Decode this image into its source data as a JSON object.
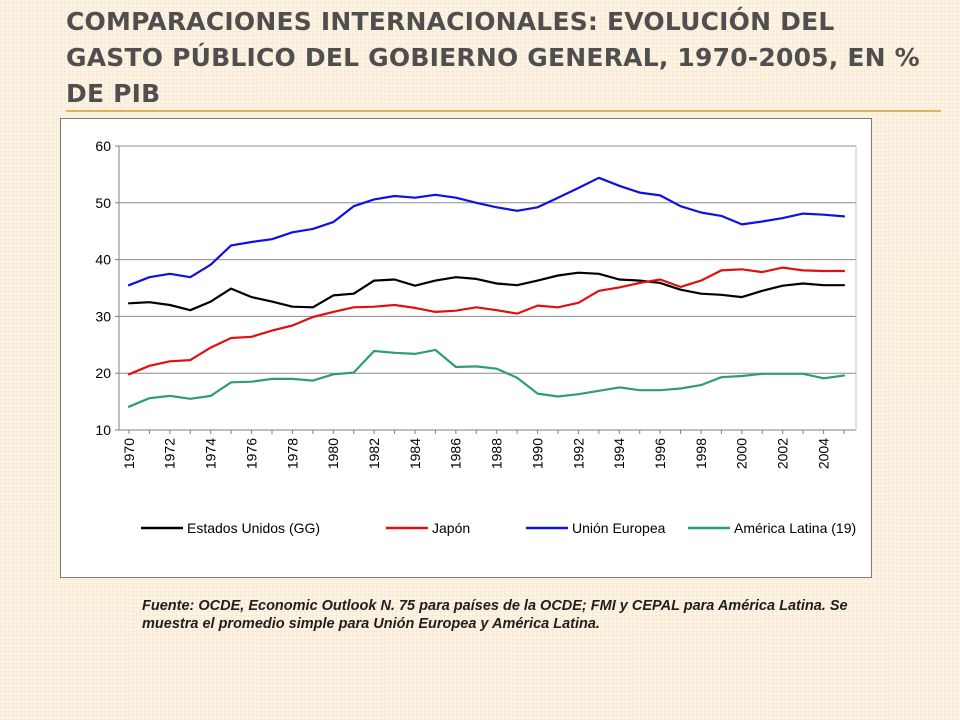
{
  "slide": {
    "title": "COMPARACIONES  INTERNACIONALES: EVOLUCIÓN DEL GASTO  PÚBLICO DEL GOBIERNO GENERAL, 1970-2005, EN % DE PIB",
    "source": "Fuente: OCDE, Economic Outlook N. 75 para países de la OCDE; FMI y CEPAL para América Latina. Se muestra el promedio simple para Unión Europea y América Latina."
  },
  "chart_data": {
    "type": "line",
    "title": "",
    "xlabel": "",
    "ylabel": "",
    "ylim": [
      10,
      60
    ],
    "yticks": [
      10,
      20,
      30,
      40,
      50,
      60
    ],
    "grid": true,
    "legend_position": "bottom",
    "x": [
      1970,
      1971,
      1972,
      1973,
      1974,
      1975,
      1976,
      1977,
      1978,
      1979,
      1980,
      1981,
      1982,
      1983,
      1984,
      1985,
      1986,
      1987,
      1988,
      1989,
      1990,
      1991,
      1992,
      1993,
      1994,
      1995,
      1996,
      1997,
      1998,
      1999,
      2000,
      2001,
      2002,
      2003,
      2004,
      2005
    ],
    "xtick_labels": [
      "1970",
      "1972",
      "1974",
      "1976",
      "1978",
      "1980",
      "1982",
      "1984",
      "1986",
      "1988",
      "1990",
      "1992",
      "1994",
      "1996",
      "1998",
      "2000",
      "2002",
      "2004"
    ],
    "series": [
      {
        "name": "Estados Unidos (GG)",
        "color": "#000000",
        "values": [
          32.3,
          32.5,
          32.0,
          31.1,
          32.6,
          34.9,
          33.4,
          32.6,
          31.7,
          31.6,
          33.7,
          34.0,
          36.3,
          36.5,
          35.4,
          36.3,
          36.9,
          36.6,
          35.8,
          35.5,
          36.3,
          37.2,
          37.7,
          37.5,
          36.5,
          36.3,
          35.9,
          34.7,
          34.0,
          33.8,
          33.4,
          34.5,
          35.4,
          35.8,
          35.5,
          35.5
        ]
      },
      {
        "name": "Japón",
        "color": "#e01010",
        "values": [
          19.8,
          21.3,
          22.1,
          22.3,
          24.5,
          26.2,
          26.4,
          27.5,
          28.4,
          29.9,
          30.8,
          31.6,
          31.7,
          32.0,
          31.5,
          30.8,
          31.0,
          31.6,
          31.1,
          30.5,
          31.9,
          31.6,
          32.4,
          34.5,
          35.1,
          35.9,
          36.5,
          35.2,
          36.3,
          38.1,
          38.3,
          37.8,
          38.6,
          38.1,
          38.0,
          38.0
        ]
      },
      {
        "name": "Unión Europea",
        "color": "#1010e0",
        "values": [
          35.5,
          36.9,
          37.5,
          36.9,
          39.1,
          42.5,
          43.1,
          43.6,
          44.8,
          45.4,
          46.6,
          49.4,
          50.6,
          51.2,
          50.9,
          51.4,
          50.9,
          50.0,
          49.2,
          48.6,
          49.2,
          50.9,
          52.6,
          54.4,
          53.0,
          51.8,
          51.3,
          49.4,
          48.3,
          47.7,
          46.2,
          46.7,
          47.3,
          48.1,
          47.9,
          47.6
        ]
      },
      {
        "name": "América Latina (19)",
        "color": "#2e9e72",
        "values": [
          14.1,
          15.6,
          16.0,
          15.5,
          16.0,
          18.4,
          18.5,
          19.0,
          19.0,
          18.7,
          19.8,
          20.1,
          23.9,
          23.6,
          23.4,
          24.1,
          21.1,
          21.2,
          20.8,
          19.2,
          16.4,
          15.9,
          16.3,
          16.9,
          17.5,
          17.0,
          17.0,
          17.3,
          17.9,
          19.3,
          19.5,
          19.9,
          19.9,
          19.9,
          19.1,
          19.6
        ]
      }
    ]
  }
}
